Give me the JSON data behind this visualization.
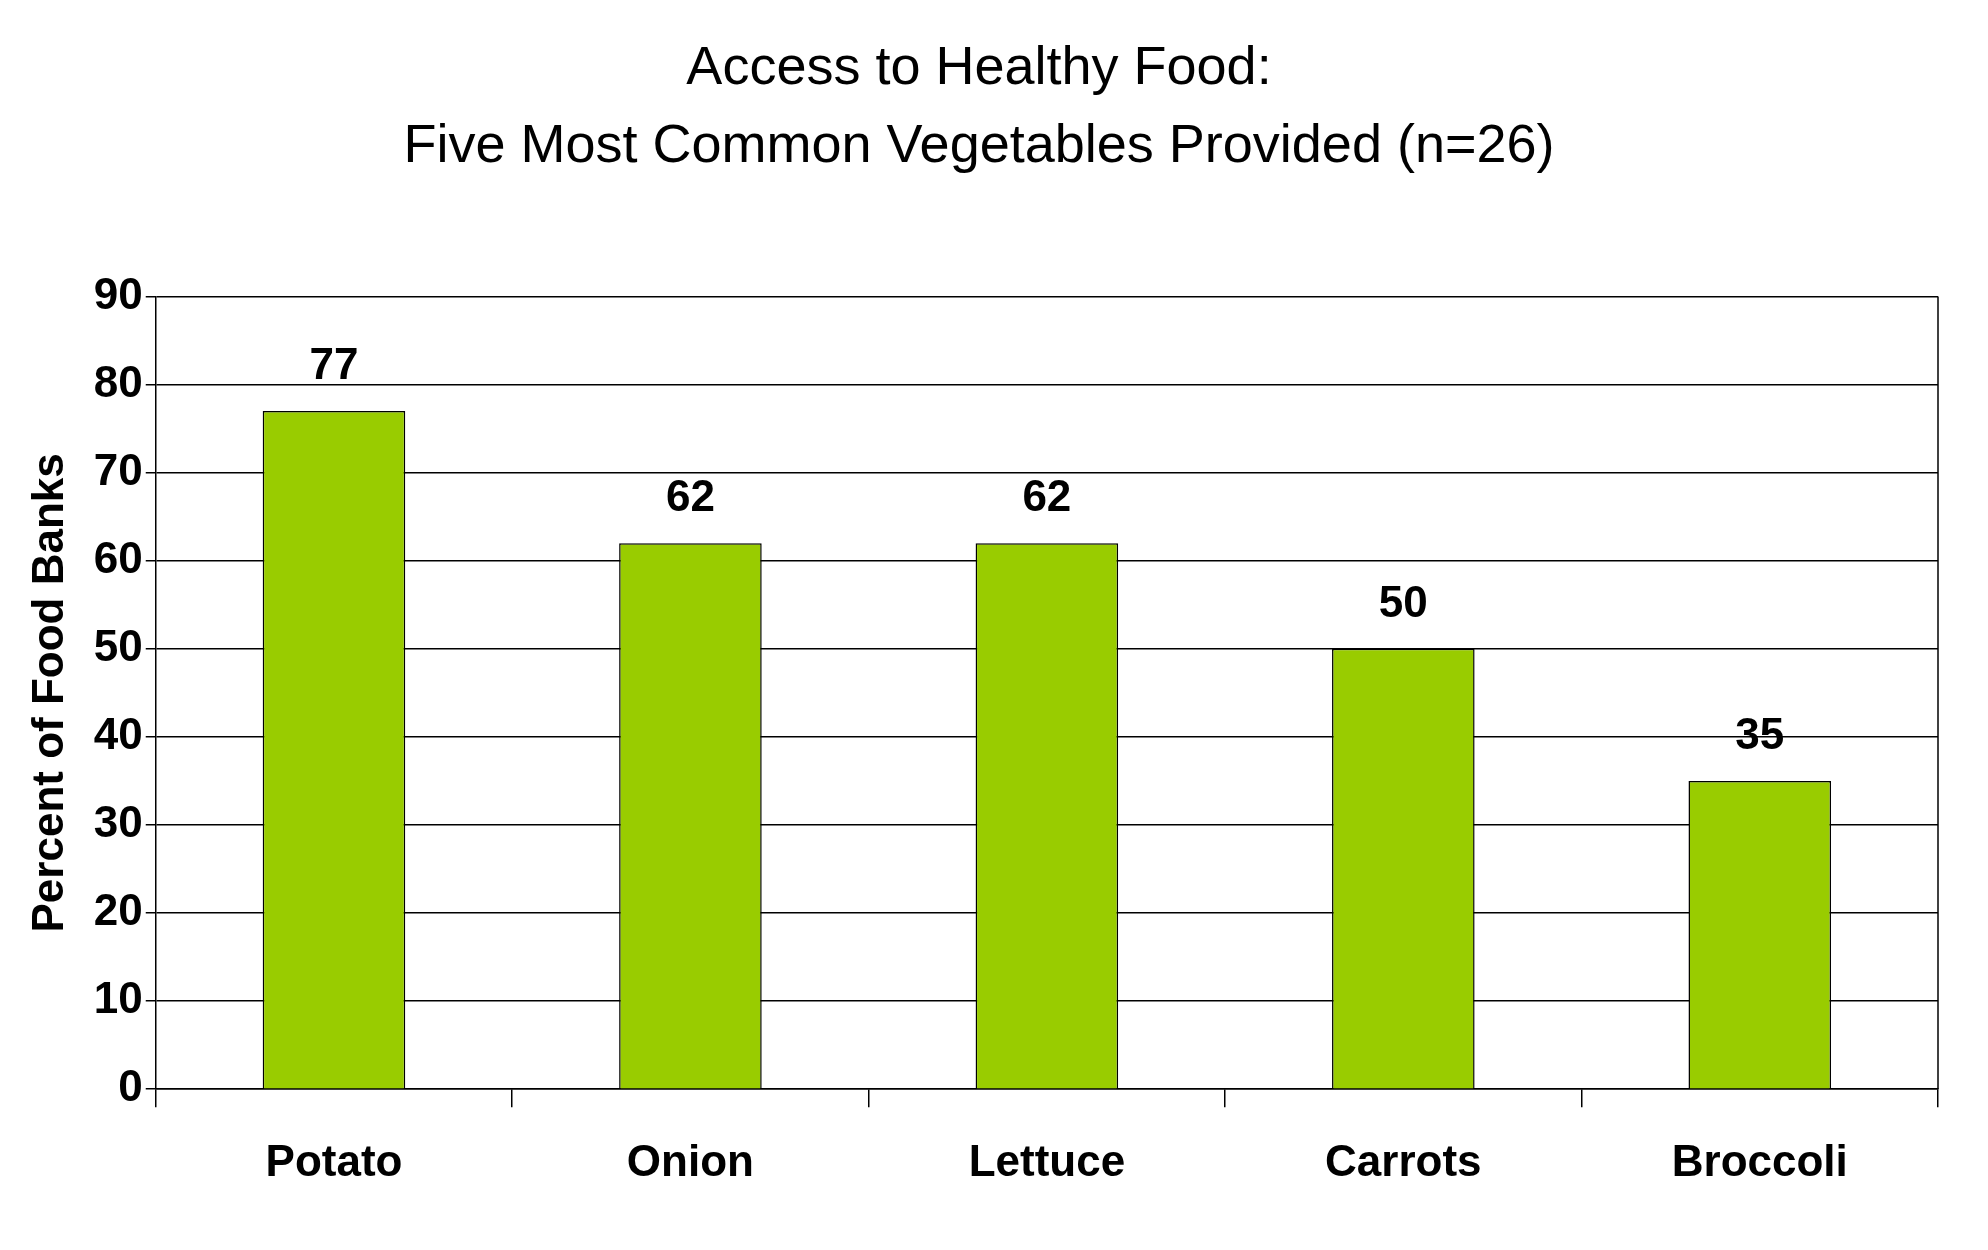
{
  "chart_data": {
    "type": "bar",
    "title": [
      "Access to Healthy Food:",
      "Five Most Common Vegetables Provided (n=26)"
    ],
    "ylabel": "Percent of Food Banks",
    "categories": [
      "Potato",
      "Onion",
      "Lettuce",
      "Carrots",
      "Broccoli"
    ],
    "values": [
      77,
      62,
      62,
      50,
      35
    ],
    "color": "#99cc00",
    "ylim": [
      0,
      90
    ],
    "yticks": [
      0,
      10,
      20,
      30,
      40,
      50,
      60,
      70,
      80,
      90
    ],
    "grid": "y",
    "legend": false,
    "data_labels": true
  }
}
